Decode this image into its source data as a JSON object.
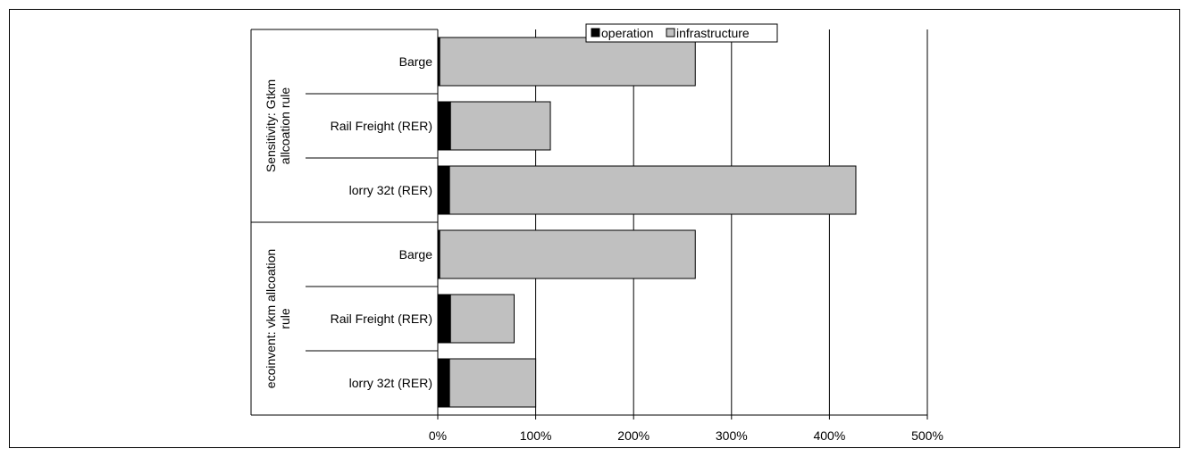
{
  "chart_data": {
    "type": "bar",
    "orientation": "horizontal",
    "stacked": true,
    "groups": [
      {
        "label": "Sensitivity: Gtkm allcoation rule",
        "label_lines": [
          "Sensitivity: Gtkm",
          "allcoation rule"
        ],
        "categories": [
          "Barge",
          "Rail Freight (RER)",
          "lorry 32t (RER)"
        ]
      },
      {
        "label": "ecoinvent: vkm allcoation rule",
        "label_lines": [
          "ecoinvent: vkm allcoation",
          "rule"
        ],
        "categories": [
          "Barge",
          "Rail Freight (RER)",
          "lorry 32t (RER)"
        ]
      }
    ],
    "series": [
      {
        "name": "operation",
        "color": "#000000",
        "values": [
          2,
          13,
          12,
          2,
          13,
          12
        ]
      },
      {
        "name": "infrastructure",
        "color": "#c0c0c0",
        "values": [
          261,
          102,
          415,
          261,
          65,
          88
        ]
      }
    ],
    "xlim": [
      0,
      500
    ],
    "xticks": [
      "0%",
      "100%",
      "200%",
      "300%",
      "400%",
      "500%"
    ],
    "grid": true,
    "legend": "top-center"
  }
}
